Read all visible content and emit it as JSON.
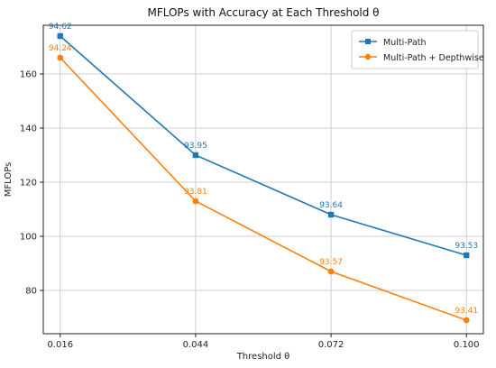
{
  "chart_data": {
    "type": "line",
    "title": "MFLOPs with Accuracy at Each Threshold θ",
    "xlabel": "Threshold θ",
    "ylabel": "MFLOPs",
    "categories": [
      "0.016",
      "0.044",
      "0.072",
      "0.100"
    ],
    "x": [
      0.016,
      0.044,
      0.072,
      0.1
    ],
    "xlim": [
      0.0125,
      0.1035
    ],
    "ylim": [
      64,
      178
    ],
    "yticks": [
      80,
      100,
      120,
      140,
      160
    ],
    "grid": true,
    "legend_position": "top-right",
    "series": [
      {
        "name": "Multi-Path",
        "color": "#1f77b4",
        "marker": "square",
        "values": [
          174,
          130,
          108,
          93
        ],
        "labels": [
          "94.62",
          "93.95",
          "93.64",
          "93.53"
        ]
      },
      {
        "name": "Multi-Path + Depthwise",
        "color": "#ff7f0e",
        "marker": "circle",
        "values": [
          166,
          113,
          87,
          69
        ],
        "labels": [
          "94.24",
          "93.81",
          "93.57",
          "93.41"
        ]
      }
    ]
  }
}
